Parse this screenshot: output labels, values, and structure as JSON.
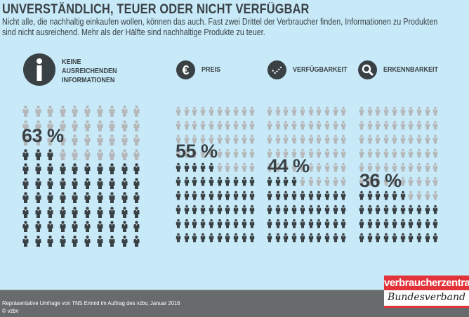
{
  "header": {
    "title": "UNVERSTÄNDLICH, TEUER ODER NICHT VERFÜGBAR",
    "subtitle_line1": "Nicht alle, die nachhaltig einkaufen wollen, können das auch. Fast zwei Drittel der Verbraucher finden, Informationen zu Produkten",
    "subtitle_line2": "sind nicht ausreichend. Mehr als der Hälfte sind nachhaltige Produkte zu teuer."
  },
  "chart_data": {
    "type": "pictogram",
    "units_per_grid": 100,
    "grid": "10x10",
    "colors": {
      "filled": "#3a4145",
      "empty": "#b5b8ba",
      "background": "#c7e9f8"
    },
    "categories": [
      {
        "icon": "info-icon",
        "label_lines": [
          "KEINE",
          "AUSREICHENDEN",
          "INFORMATIONEN"
        ],
        "value": 63,
        "value_label": "63 %"
      },
      {
        "icon": "euro-icon",
        "label_lines": [
          "PREIS"
        ],
        "value": 55,
        "value_label": "55 %"
      },
      {
        "icon": "checkmark-icon",
        "label_lines": [
          "VERFÜGBARKEIT"
        ],
        "value": 44,
        "value_label": "44 %"
      },
      {
        "icon": "magnifier-icon",
        "label_lines": [
          "ERKENNBARKEIT"
        ],
        "value": 36,
        "value_label": "36 %"
      }
    ]
  },
  "footer": {
    "source": "Repräsentative Umfrage von TNS Emnid im Auftrag des vzbv, Januar 2016",
    "copyright": "© vzbv"
  },
  "logo": {
    "top": "verbraucherzentrale",
    "bottom": "Bundesverband"
  }
}
